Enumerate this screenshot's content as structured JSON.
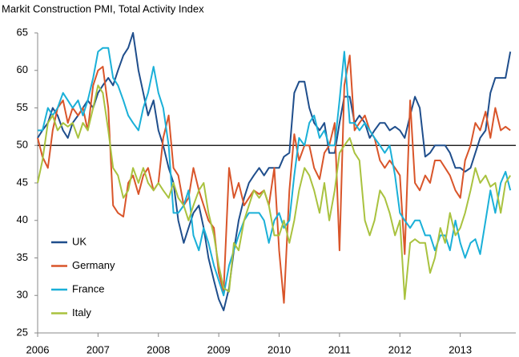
{
  "chart_data": {
    "type": "line",
    "title": "Markit Construction PMI, Total Activity Index",
    "x": [
      2006,
      2006.08,
      2006.17,
      2006.25,
      2006.33,
      2006.42,
      2006.5,
      2006.58,
      2006.67,
      2006.75,
      2006.83,
      2006.92,
      2007,
      2007.08,
      2007.17,
      2007.25,
      2007.33,
      2007.42,
      2007.5,
      2007.58,
      2007.67,
      2007.75,
      2007.83,
      2007.92,
      2008,
      2008.08,
      2008.17,
      2008.25,
      2008.33,
      2008.42,
      2008.5,
      2008.58,
      2008.67,
      2008.75,
      2008.83,
      2008.92,
      2009,
      2009.08,
      2009.17,
      2009.25,
      2009.33,
      2009.42,
      2009.5,
      2009.58,
      2009.67,
      2009.75,
      2009.83,
      2009.92,
      2010,
      2010.08,
      2010.17,
      2010.25,
      2010.33,
      2010.42,
      2010.5,
      2010.58,
      2010.67,
      2010.75,
      2010.83,
      2010.92,
      2011,
      2011.08,
      2011.17,
      2011.25,
      2011.33,
      2011.42,
      2011.5,
      2011.58,
      2011.67,
      2011.75,
      2011.83,
      2011.92,
      2012,
      2012.08,
      2012.17,
      2012.25,
      2012.33,
      2012.42,
      2012.5,
      2012.58,
      2012.67,
      2012.75,
      2012.83,
      2012.92,
      2013,
      2013.08,
      2013.17,
      2013.25,
      2013.33,
      2013.42,
      2013.5,
      2013.58,
      2013.67,
      2013.75,
      2013.83
    ],
    "series": [
      {
        "name": "UK",
        "color": "#1f4e8c",
        "values": [
          51,
          52,
          53,
          55,
          54,
          52,
          51,
          53,
          54,
          55,
          56,
          55,
          57,
          58,
          59,
          58,
          60,
          62,
          63,
          65,
          60,
          57,
          54,
          56,
          52,
          50,
          47,
          45,
          40,
          37,
          39,
          41,
          42,
          39,
          35,
          32,
          29.5,
          28,
          31,
          36,
          40,
          43,
          45,
          46,
          47,
          46,
          47,
          47,
          47,
          48.5,
          49,
          57,
          58.5,
          58.5,
          55,
          53,
          52,
          53,
          49,
          49,
          53,
          56.5,
          56.5,
          53,
          54,
          53,
          51,
          52,
          53,
          53,
          52,
          52.5,
          52,
          51,
          54,
          56.5,
          55,
          48.5,
          49,
          50,
          50,
          50,
          49,
          47,
          47,
          46.5,
          47,
          49,
          51,
          52,
          57,
          59,
          59,
          59,
          62.5
        ]
      },
      {
        "name": "Germany",
        "color": "#d9552a",
        "values": [
          51,
          48.5,
          47,
          52,
          55,
          56,
          53,
          55,
          54,
          55,
          52,
          58,
          60,
          60.5,
          55,
          42,
          41,
          40.5,
          45,
          46,
          43.5,
          46,
          47,
          44,
          45,
          51,
          54,
          47,
          46,
          42,
          43,
          47,
          44,
          42,
          40,
          39,
          33,
          30.5,
          47,
          43,
          45,
          42,
          43,
          44,
          43.5,
          44,
          42,
          47,
          36,
          29,
          44,
          51.5,
          48,
          50,
          50,
          47,
          45.5,
          49,
          50,
          53,
          36,
          58,
          62,
          52,
          53,
          54,
          52,
          51,
          48,
          47,
          48,
          47,
          46,
          35.5,
          56,
          45,
          44,
          46,
          45,
          48,
          48,
          47,
          46,
          44,
          43,
          48,
          50,
          53,
          52,
          54.5,
          51,
          55,
          52,
          52.5,
          52
        ]
      },
      {
        "name": "France",
        "color": "#1ab0d8",
        "values": [
          52,
          52,
          55,
          54,
          55,
          57,
          56,
          55,
          56,
          54,
          56,
          59,
          62.5,
          63,
          63,
          59,
          58,
          56,
          54,
          53,
          52,
          55,
          57,
          60.5,
          57,
          55,
          50,
          41,
          41,
          42,
          44,
          38,
          36,
          39,
          37,
          34,
          32,
          30,
          34,
          36,
          38,
          40,
          41,
          41,
          41,
          40,
          37,
          40,
          41,
          39,
          40,
          46,
          51,
          50,
          53,
          54,
          51,
          52,
          50,
          50,
          56,
          62.5,
          53,
          53,
          52,
          53,
          52,
          51,
          50,
          49,
          50,
          46,
          41,
          40,
          39,
          40,
          40,
          38,
          38,
          36,
          38,
          38,
          36,
          40,
          37,
          35,
          37,
          37.5,
          35.5,
          40,
          44,
          41,
          45,
          46.5,
          44
        ]
      },
      {
        "name": "Italy",
        "color": "#a9c23f",
        "values": [
          45,
          48,
          53,
          54,
          52,
          53,
          52.5,
          53,
          51,
          53,
          52,
          55,
          58,
          57,
          52,
          47,
          46,
          43,
          44,
          47,
          45,
          47,
          45,
          44,
          45,
          44,
          43,
          45,
          43,
          42,
          40,
          42,
          44,
          45,
          41,
          38,
          34,
          31,
          30.5,
          37,
          36,
          40,
          42,
          44,
          43,
          44,
          42,
          38,
          38,
          40,
          37,
          40,
          44,
          47,
          46,
          44,
          41,
          45,
          40,
          44,
          49,
          50,
          51,
          49,
          48,
          40,
          38,
          40,
          44,
          43,
          41,
          38,
          40,
          29.5,
          37,
          37.5,
          37,
          37,
          33,
          35,
          39,
          37,
          41,
          38,
          39,
          41,
          44,
          47,
          45,
          46,
          44.5,
          45,
          41,
          45,
          46
        ]
      }
    ],
    "xlim": [
      2006,
      2013.92
    ],
    "xticks": [
      2006,
      2007,
      2008,
      2009,
      2010,
      2011,
      2012,
      2013
    ],
    "ylim": [
      25,
      65
    ],
    "yticks": [
      25,
      30,
      35,
      40,
      45,
      50,
      55,
      60,
      65
    ],
    "reference_line": 50,
    "legend": "lower left"
  }
}
